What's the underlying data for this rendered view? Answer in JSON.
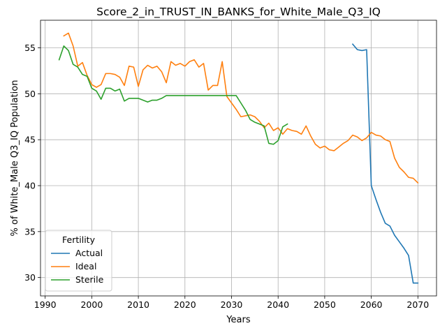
{
  "chart_data": {
    "type": "line",
    "title": "Score_2_in_TRUST_IN_BANKS_for_White_Male_Q3_IQ",
    "xlabel": "Years",
    "ylabel": "% of White_Male Q3_IQ Population",
    "xlim": [
      1989,
      2074
    ],
    "ylim": [
      28,
      58
    ],
    "xticks": [
      1990,
      2000,
      2010,
      2020,
      2030,
      2040,
      2050,
      2060,
      2070
    ],
    "yticks": [
      30,
      35,
      40,
      45,
      50,
      55
    ],
    "grid": true,
    "legend": {
      "title": "Fertility",
      "position": "lower-left"
    },
    "series": [
      {
        "name": "Actual",
        "color": "#1f77b4",
        "x": [
          2056,
          2057,
          2058,
          2059,
          2060,
          2061,
          2062,
          2063,
          2064,
          2065,
          2066,
          2067,
          2068,
          2069,
          2070
        ],
        "values": [
          55.4,
          54.8,
          54.7,
          54.8,
          40.0,
          38.5,
          37.1,
          35.9,
          35.6,
          34.6,
          33.9,
          33.2,
          32.4,
          29.4,
          29.4
        ]
      },
      {
        "name": "Ideal",
        "color": "#ff7f0e",
        "x": [
          1994,
          1995,
          1996,
          1997,
          1998,
          1999,
          2000,
          2001,
          2002,
          2003,
          2004,
          2005,
          2006,
          2007,
          2008,
          2009,
          2010,
          2011,
          2012,
          2013,
          2014,
          2015,
          2016,
          2017,
          2018,
          2019,
          2020,
          2021,
          2022,
          2023,
          2024,
          2025,
          2026,
          2027,
          2028,
          2029,
          2030,
          2031,
          2032,
          2033,
          2034,
          2035,
          2036,
          2037,
          2038,
          2039,
          2040,
          2041,
          2042,
          2043,
          2044,
          2045,
          2046,
          2047,
          2048,
          2049,
          2050,
          2051,
          2052,
          2053,
          2054,
          2055,
          2056,
          2057,
          2058,
          2059,
          2060,
          2061,
          2062,
          2063,
          2064,
          2065,
          2066,
          2067,
          2068,
          2069,
          2070
        ],
        "values": [
          56.3,
          56.6,
          55.2,
          53.0,
          53.4,
          52.0,
          51.0,
          50.7,
          51.0,
          52.2,
          52.2,
          52.1,
          51.8,
          50.9,
          53.0,
          52.9,
          50.8,
          52.6,
          53.1,
          52.8,
          53.0,
          52.4,
          51.2,
          53.5,
          53.1,
          53.3,
          53.0,
          53.5,
          53.7,
          52.9,
          53.3,
          50.4,
          50.9,
          50.9,
          53.5,
          49.7,
          49.0,
          48.3,
          47.5,
          47.6,
          47.7,
          47.5,
          47.0,
          46.3,
          46.8,
          46.0,
          46.3,
          45.6,
          46.2,
          46.0,
          45.9,
          45.6,
          46.5,
          45.4,
          44.5,
          44.1,
          44.3,
          43.9,
          43.8,
          44.2,
          44.6,
          44.9,
          45.5,
          45.3,
          44.9,
          45.2,
          45.8,
          45.5,
          45.4,
          45.0,
          44.8,
          43.0,
          42.0,
          41.5,
          40.9,
          40.8,
          40.3
        ]
      },
      {
        "name": "Sterile",
        "color": "#2ca02c",
        "x": [
          1993,
          1994,
          1995,
          1996,
          1997,
          1998,
          1999,
          2000,
          2001,
          2002,
          2003,
          2004,
          2005,
          2006,
          2007,
          2008,
          2009,
          2010,
          2011,
          2012,
          2013,
          2014,
          2015,
          2016,
          2017,
          2018,
          2019,
          2020,
          2021,
          2022,
          2023,
          2024,
          2025,
          2026,
          2027,
          2028,
          2029,
          2030,
          2031,
          2032,
          2033,
          2034,
          2035,
          2036,
          2037,
          2038,
          2039,
          2040,
          2041,
          2042
        ],
        "values": [
          53.7,
          55.2,
          54.7,
          53.2,
          52.9,
          52.1,
          51.9,
          50.6,
          50.3,
          49.4,
          50.6,
          50.6,
          50.3,
          50.5,
          49.2,
          49.5,
          49.5,
          49.5,
          49.3,
          49.1,
          49.3,
          49.3,
          49.5,
          49.8,
          49.8,
          49.8,
          49.8,
          49.8,
          49.8,
          49.8,
          49.8,
          49.8,
          49.8,
          49.8,
          49.8,
          49.8,
          49.8,
          49.8,
          49.8,
          49.0,
          48.2,
          47.2,
          46.9,
          46.7,
          46.5,
          44.6,
          44.5,
          44.9,
          46.4,
          46.7
        ]
      }
    ]
  }
}
